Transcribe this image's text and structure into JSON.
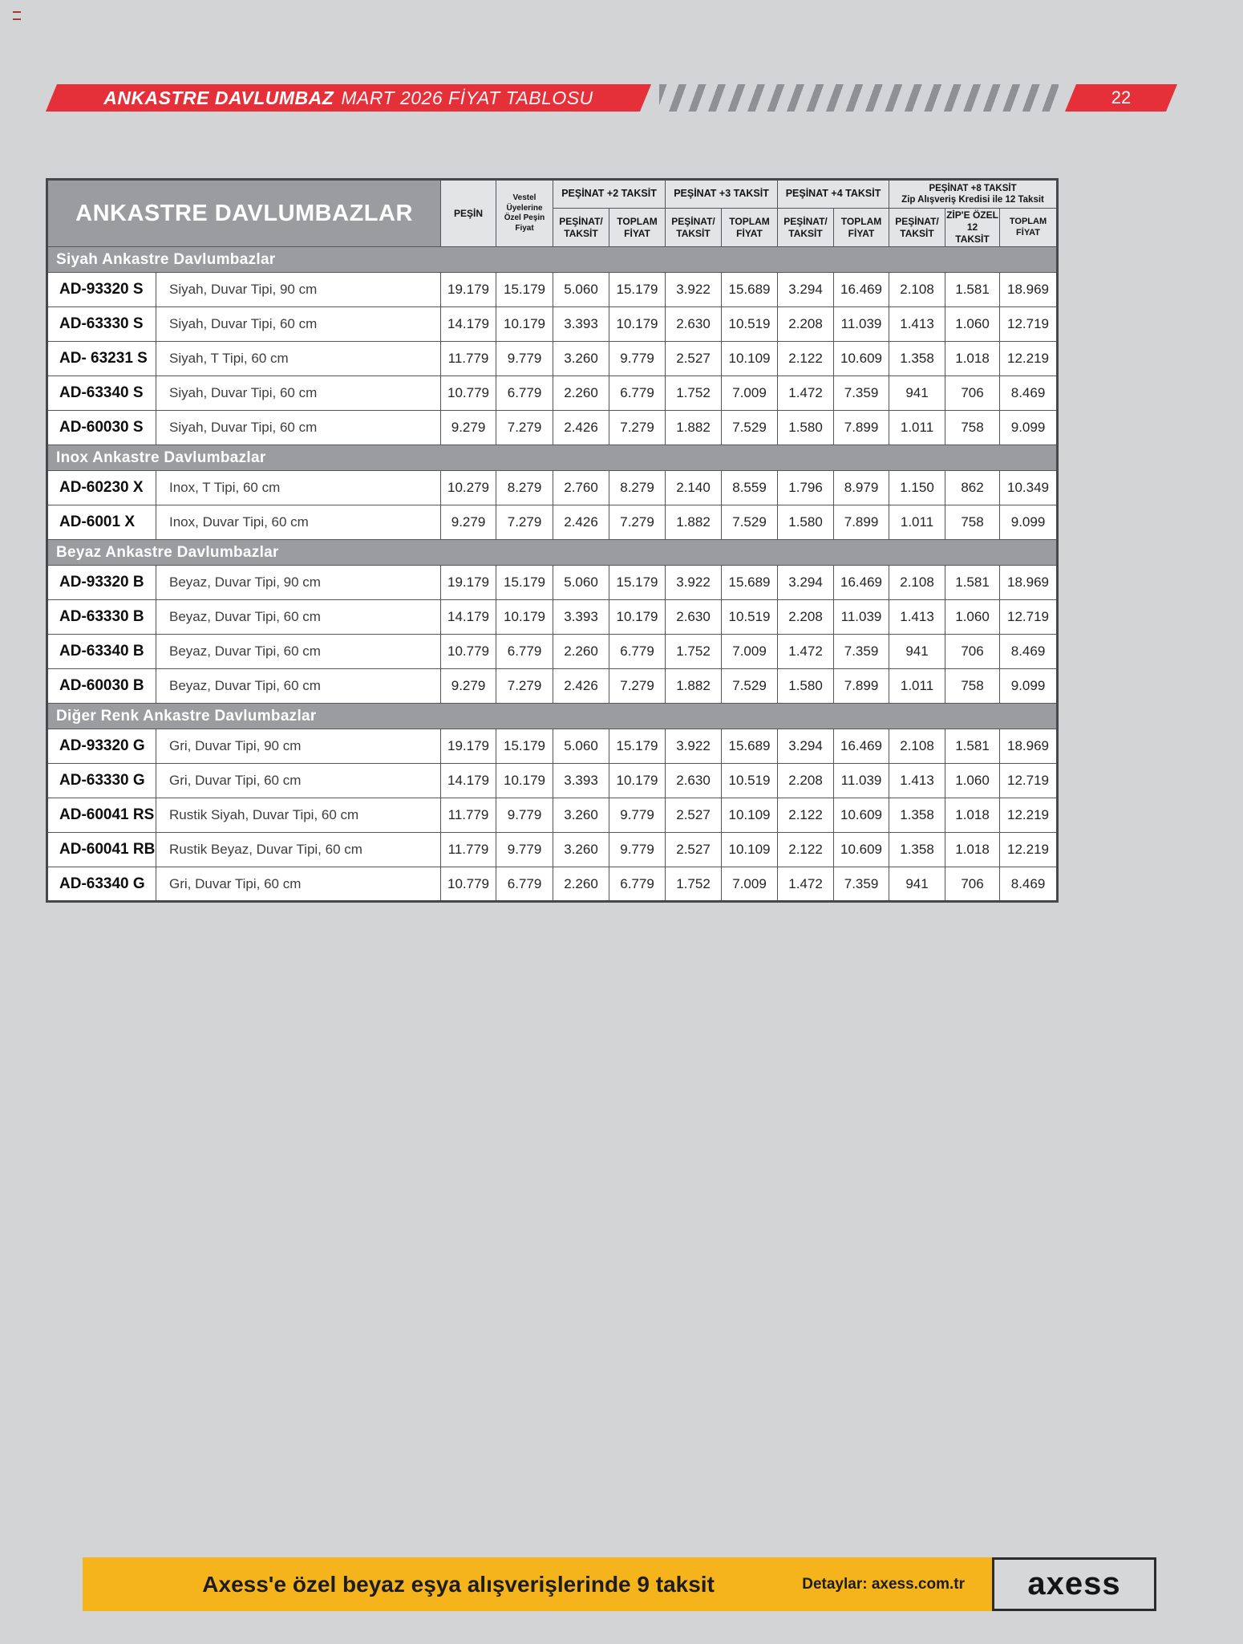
{
  "colors": {
    "accent_red": "#e5303a",
    "banner_yellow": "#f5b41b",
    "section_gray": "#9b9ca0",
    "page_bg": "#d2d4d6"
  },
  "header": {
    "title_bold": "ANKASTRE DAVLUMBAZ",
    "title_rest": "MART 2026 FİYAT TABLOSU",
    "page_number": "22"
  },
  "table": {
    "title": "ANKASTRE DAVLUMBAZLAR",
    "columns": {
      "pesin": "PEŞİN",
      "vestel": "Vestel Üyelerine\nÖzel Peşin Fiyat",
      "groups": [
        {
          "label": "PEŞİNAT +2 TAKSİT",
          "subs": [
            "PEŞİNAT/\nTAKSİT",
            "TOPLAM\nFİYAT"
          ]
        },
        {
          "label": "PEŞİNAT +3 TAKSİT",
          "subs": [
            "PEŞİNAT/\nTAKSİT",
            "TOPLAM\nFİYAT"
          ]
        },
        {
          "label": "PEŞİNAT +4 TAKSİT",
          "subs": [
            "PEŞİNAT/\nTAKSİT",
            "TOPLAM\nFİYAT"
          ]
        },
        {
          "label": "PEŞİNAT +8 TAKSİT\nZip Alışveriş Kredisi ile 12 Taksit",
          "subs": [
            "PEŞİNAT/\nTAKSİT",
            "ZİP'E ÖZEL 12\nTAKSİT",
            "TOPLAM FİYAT"
          ]
        }
      ]
    },
    "sections": [
      {
        "title": "Siyah Ankastre Davlumbazlar",
        "rows": [
          {
            "model": "AD-93320 S",
            "desc": "Siyah, Duvar Tipi, 90 cm",
            "values": [
              "19.179",
              "15.179",
              "5.060",
              "15.179",
              "3.922",
              "15.689",
              "3.294",
              "16.469",
              "2.108",
              "1.581",
              "18.969"
            ]
          },
          {
            "model": "AD-63330 S",
            "desc": "Siyah, Duvar Tipi, 60 cm",
            "values": [
              "14.179",
              "10.179",
              "3.393",
              "10.179",
              "2.630",
              "10.519",
              "2.208",
              "11.039",
              "1.413",
              "1.060",
              "12.719"
            ]
          },
          {
            "model": "AD- 63231 S",
            "desc": "Siyah, T Tipi, 60 cm",
            "values": [
              "11.779",
              "9.779",
              "3.260",
              "9.779",
              "2.527",
              "10.109",
              "2.122",
              "10.609",
              "1.358",
              "1.018",
              "12.219"
            ]
          },
          {
            "model": "AD-63340 S",
            "desc": "Siyah, Duvar Tipi, 60 cm",
            "values": [
              "10.779",
              "6.779",
              "2.260",
              "6.779",
              "1.752",
              "7.009",
              "1.472",
              "7.359",
              "941",
              "706",
              "8.469"
            ]
          },
          {
            "model": "AD-60030 S",
            "desc": "Siyah, Duvar Tipi, 60 cm",
            "values": [
              "9.279",
              "7.279",
              "2.426",
              "7.279",
              "1.882",
              "7.529",
              "1.580",
              "7.899",
              "1.011",
              "758",
              "9.099"
            ]
          }
        ]
      },
      {
        "title": "Inox Ankastre Davlumbazlar",
        "rows": [
          {
            "model": "AD-60230 X",
            "desc": "Inox, T Tipi, 60 cm",
            "values": [
              "10.279",
              "8.279",
              "2.760",
              "8.279",
              "2.140",
              "8.559",
              "1.796",
              "8.979",
              "1.150",
              "862",
              "10.349"
            ]
          },
          {
            "model": "AD-6001 X",
            "desc": "Inox, Duvar Tipi, 60 cm",
            "values": [
              "9.279",
              "7.279",
              "2.426",
              "7.279",
              "1.882",
              "7.529",
              "1.580",
              "7.899",
              "1.011",
              "758",
              "9.099"
            ]
          }
        ]
      },
      {
        "title": "Beyaz Ankastre Davlumbazlar",
        "rows": [
          {
            "model": "AD-93320 B",
            "desc": "Beyaz, Duvar Tipi, 90 cm",
            "values": [
              "19.179",
              "15.179",
              "5.060",
              "15.179",
              "3.922",
              "15.689",
              "3.294",
              "16.469",
              "2.108",
              "1.581",
              "18.969"
            ]
          },
          {
            "model": "AD-63330 B",
            "desc": "Beyaz, Duvar Tipi, 60 cm",
            "values": [
              "14.179",
              "10.179",
              "3.393",
              "10.179",
              "2.630",
              "10.519",
              "2.208",
              "11.039",
              "1.413",
              "1.060",
              "12.719"
            ]
          },
          {
            "model": "AD-63340 B",
            "desc": "Beyaz, Duvar Tipi, 60 cm",
            "values": [
              "10.779",
              "6.779",
              "2.260",
              "6.779",
              "1.752",
              "7.009",
              "1.472",
              "7.359",
              "941",
              "706",
              "8.469"
            ]
          },
          {
            "model": "AD-60030 B",
            "desc": "Beyaz, Duvar Tipi, 60 cm",
            "values": [
              "9.279",
              "7.279",
              "2.426",
              "7.279",
              "1.882",
              "7.529",
              "1.580",
              "7.899",
              "1.011",
              "758",
              "9.099"
            ]
          }
        ]
      },
      {
        "title": "Diğer Renk Ankastre Davlumbazlar",
        "rows": [
          {
            "model": "AD-93320 G",
            "desc": "Gri, Duvar Tipi, 90 cm",
            "values": [
              "19.179",
              "15.179",
              "5.060",
              "15.179",
              "3.922",
              "15.689",
              "3.294",
              "16.469",
              "2.108",
              "1.581",
              "18.969"
            ]
          },
          {
            "model": "AD-63330 G",
            "desc": "Gri, Duvar Tipi, 60 cm",
            "values": [
              "14.179",
              "10.179",
              "3.393",
              "10.179",
              "2.630",
              "10.519",
              "2.208",
              "11.039",
              "1.413",
              "1.060",
              "12.719"
            ]
          },
          {
            "model": "AD-60041 RS",
            "desc": "Rustik Siyah, Duvar Tipi, 60 cm",
            "values": [
              "11.779",
              "9.779",
              "3.260",
              "9.779",
              "2.527",
              "10.109",
              "2.122",
              "10.609",
              "1.358",
              "1.018",
              "12.219"
            ]
          },
          {
            "model": "AD-60041 RB",
            "desc": "Rustik Beyaz, Duvar Tipi, 60 cm",
            "values": [
              "11.779",
              "9.779",
              "3.260",
              "9.779",
              "2.527",
              "10.109",
              "2.122",
              "10.609",
              "1.358",
              "1.018",
              "12.219"
            ]
          },
          {
            "model": "AD-63340 G",
            "desc": "Gri, Duvar Tipi, 60 cm",
            "values": [
              "10.779",
              "6.779",
              "2.260",
              "6.779",
              "1.752",
              "7.009",
              "1.472",
              "7.359",
              "941",
              "706",
              "8.469"
            ]
          }
        ]
      }
    ]
  },
  "footer": {
    "promo": "Axess'e özel beyaz eşya alışverişlerinde 9 taksit",
    "details": "Detaylar: axess.com.tr",
    "logo": "axess"
  }
}
